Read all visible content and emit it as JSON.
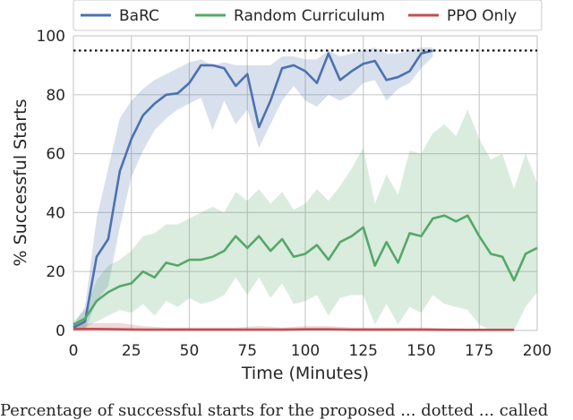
{
  "chart_data": {
    "type": "line",
    "xlabel": "Time (Minutes)",
    "ylabel": "% Successful Starts",
    "xlim": [
      0,
      200
    ],
    "ylim": [
      0,
      100
    ],
    "xticks": [
      0,
      25,
      50,
      75,
      100,
      125,
      150,
      175,
      200
    ],
    "yticks": [
      0,
      20,
      40,
      60,
      80,
      100
    ],
    "grid": true,
    "legend_position": "top",
    "reference_line": {
      "y": 95,
      "style": "dotted",
      "color": "#000000"
    },
    "series": [
      {
        "name": "BaRC",
        "color": "#4c72b0",
        "x": [
          0,
          5,
          10,
          15,
          20,
          25,
          30,
          35,
          40,
          45,
          50,
          55,
          60,
          65,
          70,
          75,
          80,
          85,
          90,
          95,
          100,
          105,
          110,
          115,
          120,
          125,
          130,
          135,
          140,
          145,
          150,
          155
        ],
        "y": [
          1,
          3,
          25,
          31,
          54,
          65,
          73,
          77,
          80,
          80.5,
          84,
          90,
          90,
          89,
          83,
          87,
          69,
          78,
          89,
          90,
          88,
          84,
          94,
          85,
          88,
          90.5,
          91.5,
          85,
          86,
          88,
          94,
          95
        ],
        "band_upper": [
          2,
          8,
          38,
          55,
          72,
          78,
          82,
          85,
          87,
          89,
          91,
          92,
          90,
          91,
          90,
          90,
          90,
          90,
          93,
          93,
          92,
          92,
          95,
          93,
          94,
          95,
          96,
          94,
          94,
          95,
          96,
          96
        ],
        "band_lower": [
          0,
          0,
          10,
          15,
          35,
          52,
          61,
          68,
          72,
          75,
          77,
          79,
          68,
          78,
          70,
          75,
          62,
          70,
          78,
          83,
          78,
          76,
          80,
          78,
          80,
          84,
          85,
          78,
          82,
          84,
          89,
          93
        ]
      },
      {
        "name": "Random Curriculum",
        "color": "#55a868",
        "x": [
          0,
          5,
          10,
          15,
          20,
          25,
          30,
          35,
          40,
          45,
          50,
          55,
          60,
          65,
          70,
          75,
          80,
          85,
          90,
          95,
          100,
          105,
          110,
          115,
          120,
          125,
          130,
          135,
          140,
          145,
          150,
          155,
          160,
          165,
          170,
          175,
          180,
          185,
          190,
          195,
          200
        ],
        "y": [
          2,
          4,
          10,
          13,
          15,
          16,
          20,
          18,
          23,
          22,
          24,
          24,
          25,
          27,
          32,
          28,
          32,
          27,
          31,
          25,
          26,
          29,
          24,
          30,
          32,
          35,
          22,
          30,
          23,
          33,
          32,
          38,
          39,
          37,
          39,
          32,
          26,
          25,
          17,
          26,
          28
        ],
        "band_upper": [
          3,
          7,
          17,
          22,
          24,
          27,
          32,
          33,
          36,
          36,
          38,
          40,
          42,
          40,
          47,
          44,
          48,
          43,
          47,
          41,
          43,
          48,
          44,
          49,
          55,
          62,
          43,
          53,
          46,
          61,
          60,
          67,
          70,
          66,
          75,
          65,
          58,
          60,
          48,
          60,
          50
        ],
        "band_lower": [
          0,
          1,
          3,
          5,
          7,
          6,
          9,
          5,
          10,
          8,
          11,
          9,
          10,
          12,
          18,
          12,
          18,
          11,
          16,
          9,
          10,
          12,
          5,
          11,
          12,
          12,
          2,
          9,
          2,
          8,
          6,
          12,
          9,
          8,
          7,
          2,
          0,
          0,
          0,
          8,
          13
        ]
      },
      {
        "name": "PPO Only",
        "color": "#c44e52",
        "x": [
          0,
          10,
          20,
          30,
          40,
          50,
          60,
          70,
          80,
          90,
          100,
          110,
          120,
          130,
          140,
          150,
          160,
          170,
          180,
          190
        ],
        "y": [
          0.5,
          0.5,
          0.4,
          0.3,
          0.3,
          0.3,
          0.3,
          0.3,
          0.3,
          0.3,
          0.4,
          0.4,
          0.3,
          0.3,
          0.3,
          0.3,
          0.2,
          0.2,
          0.2,
          0.2
        ],
        "band_upper": [
          2,
          2.5,
          2.5,
          1.5,
          1,
          1,
          1,
          1,
          1.5,
          1,
          1.5,
          1.5,
          1,
          1,
          1,
          1,
          0.8,
          0.6,
          0.5,
          0.5
        ],
        "band_lower": [
          0,
          0,
          0,
          0,
          0,
          0,
          0,
          0,
          0,
          0,
          0,
          0,
          0,
          0,
          0,
          0,
          0,
          0,
          0,
          0
        ]
      }
    ]
  },
  "caption": "Percentage of successful starts for the proposed ... dotted ... called"
}
